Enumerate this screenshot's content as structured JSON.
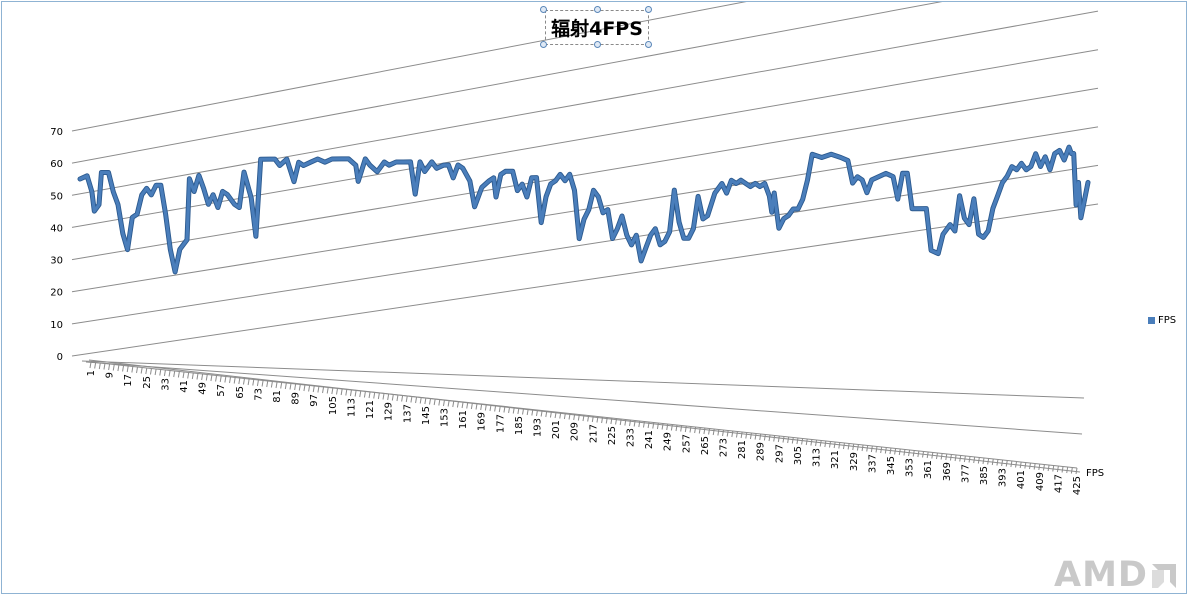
{
  "chart_data": {
    "type": "line",
    "title": "辐射4FPS",
    "y_ticks": [
      0,
      10,
      20,
      30,
      40,
      50,
      60,
      70
    ],
    "ylim": [
      0,
      70
    ],
    "x_first": 1,
    "x_tick_labels": [
      1,
      9,
      17,
      25,
      33,
      41,
      49,
      57,
      65,
      73,
      81,
      89,
      97,
      105,
      113,
      121,
      129,
      137,
      145,
      153,
      161,
      169,
      177,
      185,
      193,
      201,
      209,
      217,
      225,
      233,
      241,
      249,
      257,
      265,
      273,
      281,
      289,
      297,
      305,
      313,
      321,
      329,
      337,
      345,
      353,
      361,
      369,
      377,
      385,
      393,
      401,
      409,
      417,
      425
    ],
    "depth_axis_label": "FPS",
    "grid": true,
    "legend_position": "right",
    "series": [
      {
        "name": "FPS",
        "color": "#4a7ebb",
        "points": [
          [
            1,
            56
          ],
          [
            4,
            57
          ],
          [
            6,
            52
          ],
          [
            7,
            46
          ],
          [
            9,
            48
          ],
          [
            10,
            58
          ],
          [
            13,
            58
          ],
          [
            15,
            52
          ],
          [
            17,
            48
          ],
          [
            19,
            39
          ],
          [
            21,
            34
          ],
          [
            23,
            44
          ],
          [
            25,
            45
          ],
          [
            27,
            51
          ],
          [
            29,
            53
          ],
          [
            31,
            51
          ],
          [
            33,
            54
          ],
          [
            35,
            54
          ],
          [
            37,
            45
          ],
          [
            39,
            34
          ],
          [
            41,
            27
          ],
          [
            43,
            34
          ],
          [
            46,
            37
          ],
          [
            47,
            56
          ],
          [
            49,
            52
          ],
          [
            51,
            57
          ],
          [
            53,
            53
          ],
          [
            55,
            48
          ],
          [
            57,
            51
          ],
          [
            59,
            47
          ],
          [
            61,
            52
          ],
          [
            63,
            51
          ],
          [
            66,
            48
          ],
          [
            68,
            47
          ],
          [
            70,
            58
          ],
          [
            73,
            50
          ],
          [
            75,
            38
          ],
          [
            77,
            62
          ],
          [
            81,
            62
          ],
          [
            83,
            62
          ],
          [
            85,
            60
          ],
          [
            88,
            62
          ],
          [
            91,
            55
          ],
          [
            93,
            61
          ],
          [
            95,
            60
          ],
          [
            98,
            61
          ],
          [
            101,
            62
          ],
          [
            104,
            61
          ],
          [
            107,
            62
          ],
          [
            111,
            62
          ],
          [
            114,
            62
          ],
          [
            117,
            60
          ],
          [
            118,
            55
          ],
          [
            121,
            62
          ],
          [
            123,
            60
          ],
          [
            126,
            58
          ],
          [
            129,
            61
          ],
          [
            131,
            60
          ],
          [
            134,
            61
          ],
          [
            137,
            61
          ],
          [
            140,
            61
          ],
          [
            142,
            51
          ],
          [
            144,
            61
          ],
          [
            146,
            58
          ],
          [
            149,
            61
          ],
          [
            151,
            59
          ],
          [
            154,
            60
          ],
          [
            156,
            60
          ],
          [
            158,
            56
          ],
          [
            160,
            60
          ],
          [
            162,
            59
          ],
          [
            165,
            55
          ],
          [
            167,
            47
          ],
          [
            170,
            53
          ],
          [
            173,
            55
          ],
          [
            175,
            56
          ],
          [
            176,
            50
          ],
          [
            178,
            57
          ],
          [
            180,
            58
          ],
          [
            183,
            58
          ],
          [
            185,
            52
          ],
          [
            187,
            54
          ],
          [
            189,
            50
          ],
          [
            191,
            56
          ],
          [
            193,
            56
          ],
          [
            195,
            42
          ],
          [
            197,
            50
          ],
          [
            199,
            54
          ],
          [
            201,
            55
          ],
          [
            203,
            57
          ],
          [
            205,
            55
          ],
          [
            207,
            57
          ],
          [
            209,
            52
          ],
          [
            211,
            37
          ],
          [
            213,
            43
          ],
          [
            215,
            46
          ],
          [
            217,
            52
          ],
          [
            219,
            50
          ],
          [
            221,
            45
          ],
          [
            223,
            46
          ],
          [
            225,
            37
          ],
          [
            227,
            40
          ],
          [
            229,
            44
          ],
          [
            231,
            38
          ],
          [
            233,
            35
          ],
          [
            235,
            38
          ],
          [
            237,
            30
          ],
          [
            239,
            34
          ],
          [
            241,
            38
          ],
          [
            243,
            40
          ],
          [
            245,
            35
          ],
          [
            247,
            36
          ],
          [
            249,
            39
          ],
          [
            251,
            52
          ],
          [
            253,
            42
          ],
          [
            255,
            37
          ],
          [
            257,
            37
          ],
          [
            259,
            40
          ],
          [
            261,
            50
          ],
          [
            263,
            43
          ],
          [
            265,
            44
          ],
          [
            268,
            51
          ],
          [
            271,
            54
          ],
          [
            273,
            51
          ],
          [
            275,
            55
          ],
          [
            277,
            54
          ],
          [
            279,
            55
          ],
          [
            281,
            54
          ],
          [
            283,
            53
          ],
          [
            285,
            54
          ],
          [
            287,
            53
          ],
          [
            289,
            54
          ],
          [
            291,
            50
          ],
          [
            292,
            45
          ],
          [
            293,
            51
          ],
          [
            295,
            40
          ],
          [
            297,
            43
          ],
          [
            299,
            44
          ],
          [
            301,
            46
          ],
          [
            303,
            46
          ],
          [
            305,
            49
          ],
          [
            307,
            55
          ],
          [
            309,
            63
          ],
          [
            313,
            62
          ],
          [
            317,
            63
          ],
          [
            321,
            62
          ],
          [
            324,
            61
          ],
          [
            326,
            54
          ],
          [
            328,
            56
          ],
          [
            330,
            55
          ],
          [
            332,
            51
          ],
          [
            334,
            55
          ],
          [
            337,
            56
          ],
          [
            340,
            57
          ],
          [
            343,
            56
          ],
          [
            345,
            49
          ],
          [
            347,
            57
          ],
          [
            349,
            57
          ],
          [
            351,
            46
          ],
          [
            357,
            46
          ],
          [
            359,
            33
          ],
          [
            362,
            32
          ],
          [
            364,
            38
          ],
          [
            367,
            41
          ],
          [
            369,
            39
          ],
          [
            371,
            50
          ],
          [
            373,
            43
          ],
          [
            375,
            41
          ],
          [
            377,
            49
          ],
          [
            379,
            38
          ],
          [
            381,
            37
          ],
          [
            383,
            39
          ],
          [
            385,
            46
          ],
          [
            387,
            50
          ],
          [
            389,
            54
          ],
          [
            391,
            56
          ],
          [
            393,
            59
          ],
          [
            395,
            58
          ],
          [
            397,
            60
          ],
          [
            399,
            58
          ],
          [
            401,
            59
          ],
          [
            403,
            63
          ],
          [
            405,
            59
          ],
          [
            407,
            62
          ],
          [
            409,
            58
          ],
          [
            411,
            63
          ],
          [
            413,
            64
          ],
          [
            415,
            61
          ],
          [
            417,
            65
          ],
          [
            418,
            63
          ],
          [
            419,
            63
          ],
          [
            420,
            47
          ],
          [
            421,
            54
          ],
          [
            422,
            43
          ],
          [
            425,
            54
          ]
        ]
      }
    ]
  },
  "legend": {
    "label": "FPS"
  },
  "brand": {
    "logo_text": "AMD"
  }
}
